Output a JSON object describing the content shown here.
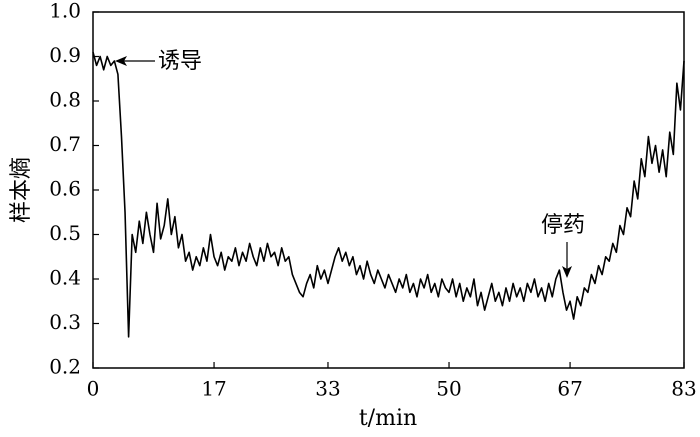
{
  "chart_data": {
    "type": "line",
    "ylabel": "样本熵",
    "xlabel": "t/min",
    "annotations": [
      "诱导",
      "停药"
    ],
    "x": [
      0,
      0.5,
      1,
      1.5,
      2,
      2.5,
      3,
      3.5,
      4,
      4.5,
      5,
      5.5,
      6,
      6.5,
      7,
      7.5,
      8,
      8.5,
      9,
      9.5,
      10,
      10.5,
      11,
      11.5,
      12,
      12.5,
      13,
      13.5,
      14,
      14.5,
      15,
      15.5,
      16,
      16.5,
      17,
      17.5,
      18,
      18.5,
      19,
      19.5,
      20,
      20.5,
      21,
      21.5,
      22,
      22.5,
      23,
      23.5,
      24,
      24.5,
      25,
      25.5,
      26,
      26.5,
      27,
      27.5,
      28,
      28.5,
      29,
      29.5,
      30,
      30.5,
      31,
      31.5,
      32,
      32.5,
      33,
      33.5,
      34,
      34.5,
      35,
      35.5,
      36,
      36.5,
      37,
      37.5,
      38,
      38.5,
      39,
      39.5,
      40,
      40.5,
      41,
      41.5,
      42,
      42.5,
      43,
      43.5,
      44,
      44.5,
      45,
      45.5,
      46,
      46.5,
      47,
      47.5,
      48,
      48.5,
      49,
      49.5,
      50,
      50.5,
      51,
      51.5,
      52,
      52.5,
      53,
      53.5,
      54,
      54.5,
      55,
      55.5,
      56,
      56.5,
      57,
      57.5,
      58,
      58.5,
      59,
      59.5,
      60,
      60.5,
      61,
      61.5,
      62,
      62.5,
      63,
      63.5,
      64,
      64.5,
      65,
      65.5,
      66,
      66.5,
      67,
      67.5,
      68,
      68.5,
      69,
      69.5,
      70,
      70.5,
      71,
      71.5,
      72,
      72.5,
      73,
      73.5,
      74,
      74.5,
      75,
      75.5,
      76,
      76.5,
      77,
      77.5,
      78,
      78.5,
      79,
      79.5,
      80,
      80.5,
      81,
      81.5,
      82,
      82.5,
      83
    ],
    "series": [
      {
        "color": "#000000",
        "values": [
          0.91,
          0.88,
          0.9,
          0.87,
          0.9,
          0.88,
          0.89,
          0.86,
          0.72,
          0.55,
          0.27,
          0.5,
          0.46,
          0.53,
          0.48,
          0.55,
          0.5,
          0.46,
          0.57,
          0.49,
          0.52,
          0.58,
          0.5,
          0.54,
          0.47,
          0.5,
          0.44,
          0.46,
          0.42,
          0.45,
          0.43,
          0.47,
          0.44,
          0.5,
          0.45,
          0.43,
          0.46,
          0.42,
          0.45,
          0.44,
          0.47,
          0.43,
          0.46,
          0.44,
          0.48,
          0.45,
          0.43,
          0.47,
          0.44,
          0.48,
          0.45,
          0.46,
          0.43,
          0.47,
          0.44,
          0.45,
          0.41,
          0.39,
          0.37,
          0.36,
          0.39,
          0.41,
          0.38,
          0.43,
          0.4,
          0.42,
          0.39,
          0.42,
          0.45,
          0.47,
          0.44,
          0.46,
          0.43,
          0.45,
          0.41,
          0.43,
          0.4,
          0.44,
          0.41,
          0.39,
          0.42,
          0.4,
          0.38,
          0.41,
          0.39,
          0.37,
          0.4,
          0.38,
          0.41,
          0.37,
          0.39,
          0.36,
          0.4,
          0.38,
          0.41,
          0.37,
          0.39,
          0.36,
          0.4,
          0.38,
          0.37,
          0.4,
          0.36,
          0.39,
          0.35,
          0.38,
          0.36,
          0.4,
          0.34,
          0.37,
          0.33,
          0.36,
          0.39,
          0.35,
          0.37,
          0.34,
          0.38,
          0.35,
          0.39,
          0.36,
          0.38,
          0.35,
          0.39,
          0.37,
          0.4,
          0.36,
          0.38,
          0.35,
          0.39,
          0.36,
          0.4,
          0.42,
          0.37,
          0.33,
          0.35,
          0.31,
          0.36,
          0.34,
          0.38,
          0.37,
          0.41,
          0.39,
          0.43,
          0.41,
          0.45,
          0.44,
          0.48,
          0.46,
          0.52,
          0.5,
          0.56,
          0.54,
          0.62,
          0.58,
          0.67,
          0.63,
          0.72,
          0.66,
          0.7,
          0.64,
          0.69,
          0.63,
          0.73,
          0.68,
          0.84,
          0.78,
          0.89
        ]
      }
    ],
    "xlim": [
      0,
      83
    ],
    "xticks": [
      0,
      17,
      33,
      50,
      67,
      83
    ],
    "ylim": [
      0.2,
      1
    ],
    "yticks": [
      0.2,
      0.3,
      0.4,
      0.5,
      0.6,
      0.7,
      0.8,
      0.9,
      {
        "value": 1,
        "label": "1.0"
      }
    ]
  }
}
